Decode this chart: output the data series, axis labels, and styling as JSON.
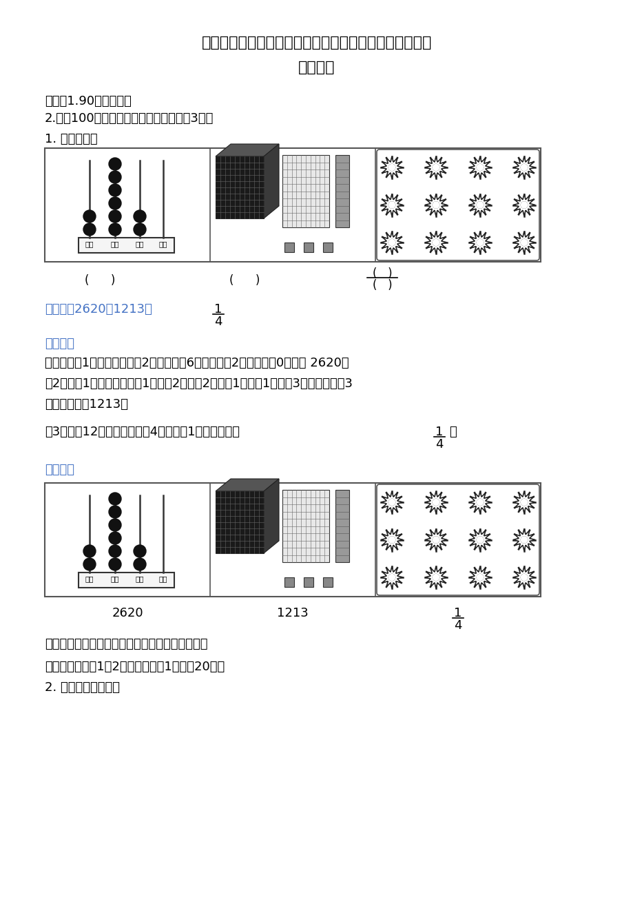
{
  "title_line1": "广东省湛江市赤坎区北师大版三年级下册期末测试数学试",
  "title_line2": "卷及答案",
  "bg_color": "#ffffff",
  "text_color": "#000000",
  "blue_color": "#4472C4",
  "instructions": [
    "说明：1.90分钟完成；",
    "2.全卷100分，其中卷面整洁、书写工整3分。",
    "1. 看图写数。"
  ],
  "answer_line": "【答案】2620；1213；",
  "fraction_answer_num": "1",
  "fraction_answer_den": "4",
  "jiexi_label": "【解析】",
  "fenxi_para1": "【分析】第1个图：千位上是2，百位上是6，十位上是2，个位上是0，写作 2620；",
  "fenxi_para2": "第2个图：1个大立方体表示1个千，2片表示2个百，1条表示1个十，3个单个的表示3",
  "fenxi_para3": "个一，写作：1213；",
  "fenxi_para4": "第3个图：12朵花，平均分成4份，其中1份分数表示为",
  "fraction_inline_num": "1",
  "fraction_inline_den": "4",
  "fenxi_para4_end": "。",
  "xiangjie_label": "【详解】",
  "label_2620": "2620",
  "label_1213": "1213",
  "dianjing_text": "【点睛】看懂图示表示的意义是解答本题的关键。",
  "section2_title": "二、填空。（第1题2分，其余每空1分，共20分）",
  "section2_q2": "2. 填写数位顺序表。"
}
